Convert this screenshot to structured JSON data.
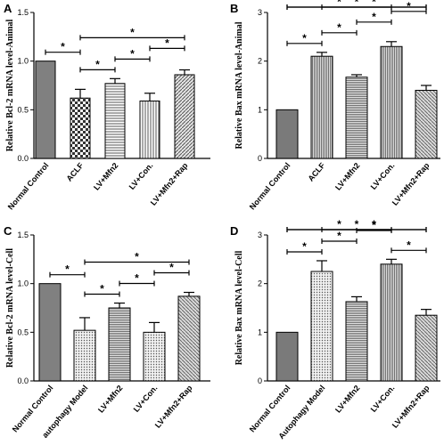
{
  "chart_data": [
    {
      "panel": "A",
      "type": "bar",
      "ylabel": "Relative Bcl-2 mRNA level-Animal",
      "ylim": [
        0,
        1.5
      ],
      "yticks": [
        "0.0",
        "0.5",
        "1.0",
        "1.5"
      ],
      "categories": [
        "Normal Control",
        "ACLF",
        "LV+Mfn2",
        "LV+Con.",
        "LV+Mfn2+Rap"
      ],
      "values": [
        1.0,
        0.62,
        0.77,
        0.59,
        0.86
      ],
      "errors": [
        0.0,
        0.09,
        0.05,
        0.08,
        0.05
      ],
      "significance": [
        {
          "from": 0,
          "to": 1,
          "label": "*"
        },
        {
          "from": 1,
          "to": 2,
          "label": "*"
        },
        {
          "from": 2,
          "to": 3,
          "label": "*"
        },
        {
          "from": 3,
          "to": 4,
          "label": "*"
        },
        {
          "from": 1,
          "to": 4,
          "label": "*"
        }
      ]
    },
    {
      "panel": "B",
      "type": "bar",
      "ylabel": "Relative Bax mRNA level-Animal",
      "ylim": [
        0,
        3
      ],
      "yticks": [
        "0",
        "1",
        "2",
        "3"
      ],
      "categories": [
        "Normal Control",
        "ACLF",
        "LV+Mfn2",
        "LV+Con.",
        "LV+Mfn2+Rap"
      ],
      "values": [
        1.0,
        2.1,
        1.67,
        2.3,
        1.4
      ],
      "errors": [
        0.0,
        0.08,
        0.05,
        0.1,
        0.1
      ],
      "significance": [
        {
          "from": 0,
          "to": 1,
          "label": "*"
        },
        {
          "from": 1,
          "to": 2,
          "label": "*"
        },
        {
          "from": 2,
          "to": 3,
          "label": "*"
        },
        {
          "from": 3,
          "to": 4,
          "label": "*"
        },
        {
          "from": 0,
          "to": 3,
          "label": "*"
        },
        {
          "from": 0,
          "to": 4,
          "label": "*"
        },
        {
          "from": 1,
          "to": 4,
          "label": "*"
        }
      ]
    },
    {
      "panel": "C",
      "type": "bar",
      "ylabel": "Relative Bcl-2 mRNA level-Cell",
      "ylim": [
        0,
        1.5
      ],
      "yticks": [
        "0.0",
        "0.5",
        "1.0",
        "1.5"
      ],
      "categories": [
        "Normal Control",
        "autophagy Model",
        "LV+Mfn2",
        "LV+Con.",
        "LV+Mfn2+Rap"
      ],
      "values": [
        1.0,
        0.52,
        0.75,
        0.5,
        0.87
      ],
      "errors": [
        0.0,
        0.13,
        0.05,
        0.1,
        0.04
      ],
      "significance": [
        {
          "from": 0,
          "to": 1,
          "label": "*"
        },
        {
          "from": 1,
          "to": 2,
          "label": "*"
        },
        {
          "from": 2,
          "to": 3,
          "label": "*"
        },
        {
          "from": 3,
          "to": 4,
          "label": "*"
        },
        {
          "from": 1,
          "to": 4,
          "label": "*"
        }
      ]
    },
    {
      "panel": "D",
      "type": "bar",
      "ylabel": "Relative Bax mRNA level-Cell",
      "ylim": [
        0,
        3
      ],
      "yticks": [
        "0",
        "1",
        "2",
        "3"
      ],
      "categories": [
        "Normal Control",
        "Autophagy Model",
        "LV+Mfn2",
        "LV+Con.",
        "LV+Mfn2+Rap"
      ],
      "values": [
        1.0,
        2.25,
        1.63,
        2.4,
        1.35
      ],
      "errors": [
        0.0,
        0.22,
        0.1,
        0.1,
        0.12
      ],
      "significance": [
        {
          "from": 0,
          "to": 1,
          "label": "*"
        },
        {
          "from": 1,
          "to": 2,
          "label": "*"
        },
        {
          "from": 2,
          "to": 3,
          "label": "*"
        },
        {
          "from": 3,
          "to": 4,
          "label": "*"
        },
        {
          "from": 0,
          "to": 3,
          "label": "*"
        },
        {
          "from": 0,
          "to": 4,
          "label": "*"
        },
        {
          "from": 1,
          "to": 4,
          "label": "*"
        }
      ]
    }
  ]
}
